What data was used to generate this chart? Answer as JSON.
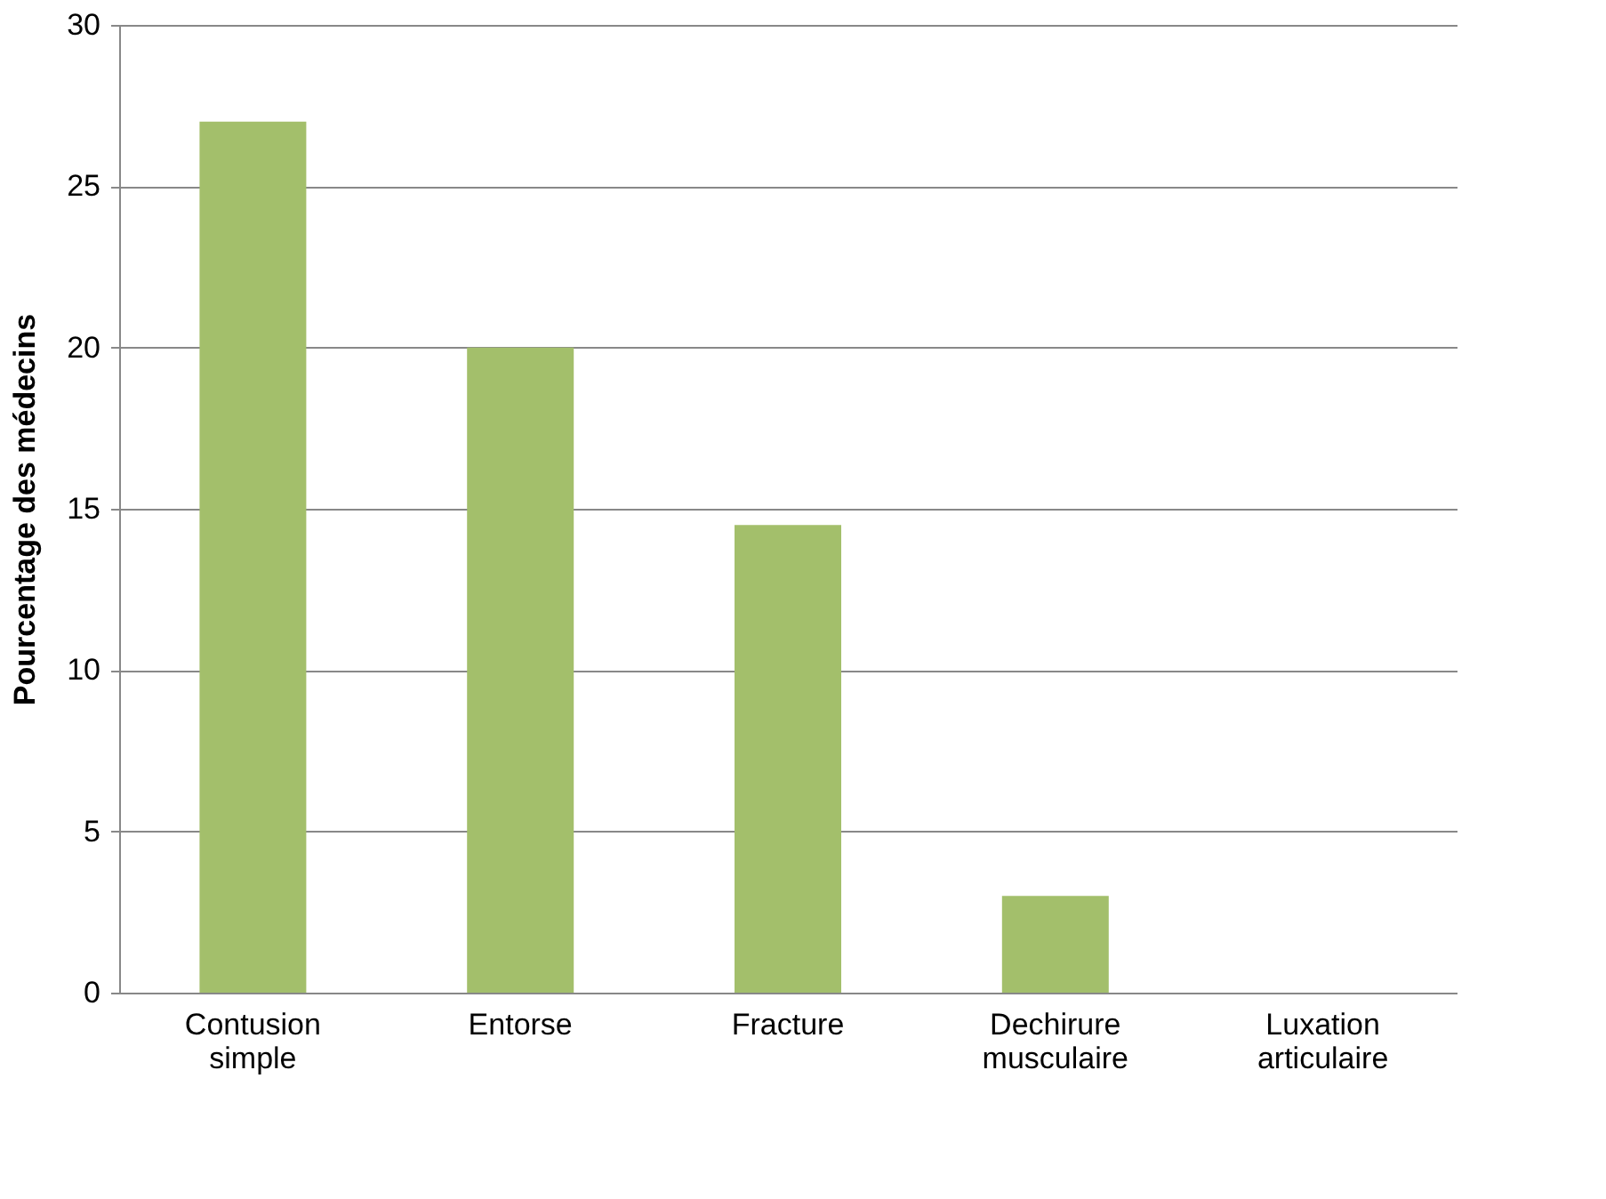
{
  "chart_data": {
    "type": "bar",
    "ylabel": "Pourcentage des médecins",
    "categories": [
      "Contusion simple",
      "Entorse",
      "Fracture",
      "Dechirure musculaire",
      "Luxation articulaire"
    ],
    "values": [
      27,
      20,
      14.5,
      3,
      0
    ],
    "color": "#a3bf6b",
    "ylim": [
      0,
      30
    ],
    "yticks": [
      0,
      5,
      10,
      15,
      20,
      25,
      30
    ],
    "grid": "y"
  }
}
